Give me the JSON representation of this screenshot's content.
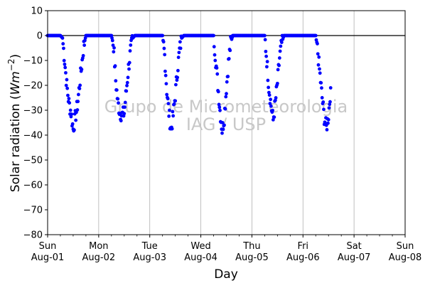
{
  "chart_data": {
    "type": "scatter",
    "ylabel": "Solar radiation ($Wm^{-2}$)",
    "xlabel": "Day",
    "ylim": [
      -80,
      10
    ],
    "yticks": [
      10,
      0,
      -10,
      -20,
      -30,
      -40,
      -50,
      -60,
      -70,
      -80
    ],
    "xlim": [
      "2021-08-01",
      "2021-08-08"
    ],
    "grid": "vertical lines at day boundaries",
    "reference_line_y": 0,
    "xtick_labels": [
      {
        "day": "Sun",
        "date": "Aug-01"
      },
      {
        "day": "Mon",
        "date": "Aug-02"
      },
      {
        "day": "Tue",
        "date": "Aug-03"
      },
      {
        "day": "Wed",
        "date": "Aug-04"
      },
      {
        "day": "Thu",
        "date": "Aug-05"
      },
      {
        "day": "Fri",
        "date": "Aug-06"
      },
      {
        "day": "Sat",
        "date": "Aug-07"
      },
      {
        "day": "Sun",
        "date": "Aug-08"
      }
    ],
    "series": [
      {
        "color": "#0000ff",
        "marker": "dot",
        "points": [
          [
            "2021-08-01 00:00",
            0
          ],
          [
            "2021-08-01 06:00",
            0
          ],
          [
            "2021-08-01 07:00",
            -1
          ],
          [
            "2021-08-01 08:00",
            -10
          ],
          [
            "2021-08-01 09:00",
            -20
          ],
          [
            "2021-08-01 10:00",
            -27
          ],
          [
            "2021-08-01 11:00",
            -31
          ],
          [
            "2021-08-01 12:00",
            -37.5
          ],
          [
            "2021-08-01 13:00",
            -33
          ],
          [
            "2021-08-01 14:00",
            -28
          ],
          [
            "2021-08-01 15:00",
            -20
          ],
          [
            "2021-08-01 16:00",
            -12
          ],
          [
            "2021-08-01 17:00",
            -4
          ],
          [
            "2021-08-01 18:00",
            0
          ],
          [
            "2021-08-02 06:00",
            0
          ],
          [
            "2021-08-02 07:00",
            -4
          ],
          [
            "2021-08-02 08:00",
            -18
          ],
          [
            "2021-08-02 09:00",
            -27
          ],
          [
            "2021-08-02 10:00",
            -31
          ],
          [
            "2021-08-02 11:00",
            -32
          ],
          [
            "2021-08-02 12:00",
            -31
          ],
          [
            "2021-08-02 13:00",
            -22
          ],
          [
            "2021-08-02 14:00",
            -13
          ],
          [
            "2021-08-02 15:00",
            -6
          ],
          [
            "2021-08-02 16:00",
            -1
          ],
          [
            "2021-08-02 17:00",
            0
          ],
          [
            "2021-08-03 06:00",
            0
          ],
          [
            "2021-08-03 07:00",
            -8
          ],
          [
            "2021-08-03 08:00",
            -22
          ],
          [
            "2021-08-03 09:00",
            -31
          ],
          [
            "2021-08-03 10:00",
            -38
          ],
          [
            "2021-08-03 11:00",
            -32
          ],
          [
            "2021-08-03 12:00",
            -24
          ],
          [
            "2021-08-03 13:00",
            -14
          ],
          [
            "2021-08-03 14:00",
            -6
          ],
          [
            "2021-08-03 15:00",
            -1
          ],
          [
            "2021-08-03 16:00",
            0
          ],
          [
            "2021-08-04 06:00",
            0
          ],
          [
            "2021-08-04 07:00",
            -10
          ],
          [
            "2021-08-04 08:00",
            -20
          ],
          [
            "2021-08-04 09:00",
            -30
          ],
          [
            "2021-08-04 10:00",
            -38
          ],
          [
            "2021-08-04 11:00",
            -33
          ],
          [
            "2021-08-04 12:00",
            -21
          ],
          [
            "2021-08-04 13:00",
            -11
          ],
          [
            "2021-08-04 14:00",
            -3
          ],
          [
            "2021-08-04 15:00",
            0
          ],
          [
            "2021-08-05 06:00",
            0
          ],
          [
            "2021-08-05 07:00",
            -10
          ],
          [
            "2021-08-05 08:00",
            -21
          ],
          [
            "2021-08-05 09:00",
            -28
          ],
          [
            "2021-08-05 10:00",
            -34
          ],
          [
            "2021-08-05 11:00",
            -27
          ],
          [
            "2021-08-05 12:00",
            -19
          ],
          [
            "2021-08-05 13:00",
            -9
          ],
          [
            "2021-08-05 14:00",
            -3
          ],
          [
            "2021-08-05 15:00",
            0
          ],
          [
            "2021-08-06 06:00",
            0
          ],
          [
            "2021-08-06 07:00",
            -7
          ],
          [
            "2021-08-06 08:00",
            -16
          ],
          [
            "2021-08-06 09:00",
            -25
          ],
          [
            "2021-08-06 10:00",
            -33
          ],
          [
            "2021-08-06 11:00",
            -37
          ],
          [
            "2021-08-06 12:00",
            -32
          ],
          [
            "2021-08-06 13:00",
            -21
          ]
        ]
      }
    ],
    "watermark": [
      "Grupo de Micrometeorologia",
      "IAG / USP"
    ]
  }
}
